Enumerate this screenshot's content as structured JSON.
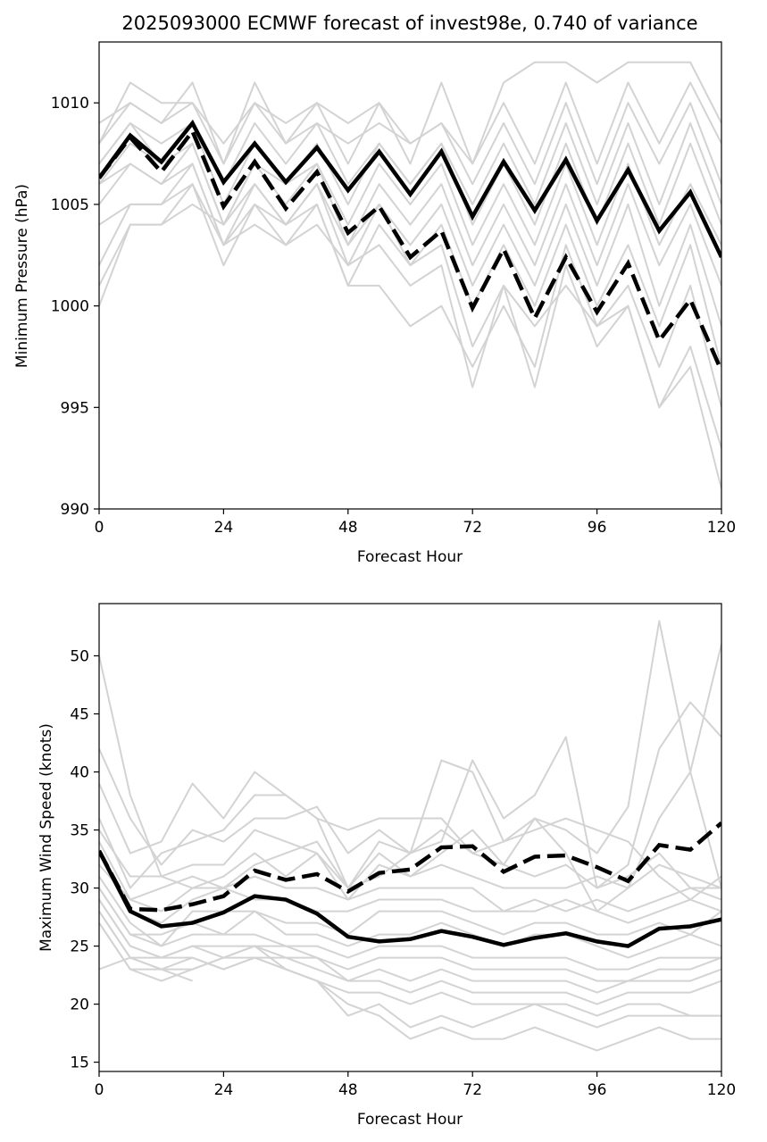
{
  "chart_data": [
    {
      "type": "line",
      "title": "2025093000 ECMWF forecast of invest98e, 0.740 of variance",
      "xlabel": "Forecast Hour",
      "ylabel": "Minimum Pressure (hPa)",
      "xlim": [
        0,
        120
      ],
      "ylim": [
        990,
        1013
      ],
      "xticks": [
        0,
        24,
        48,
        72,
        96,
        120
      ],
      "yticks": [
        990,
        995,
        1000,
        1005,
        1010
      ],
      "x": [
        0,
        6,
        12,
        18,
        24,
        30,
        36,
        42,
        48,
        54,
        60,
        66,
        72,
        78,
        84,
        90,
        96,
        102,
        108,
        114,
        120
      ],
      "series": [
        {
          "name": "solid",
          "style": "solid",
          "values": [
            1006.3,
            1008.4,
            1007.1,
            1009.0,
            1006.1,
            1008.0,
            1006.1,
            1007.8,
            1005.7,
            1007.6,
            1005.5,
            1007.6,
            1004.4,
            1007.1,
            1004.7,
            1007.2,
            1004.2,
            1006.7,
            1003.7,
            1005.6,
            1002.4
          ]
        },
        {
          "name": "dashed",
          "style": "dashed",
          "values": [
            1006.3,
            1008.3,
            1006.6,
            1008.6,
            1004.9,
            1007.1,
            1004.8,
            1006.6,
            1003.6,
            1004.9,
            1002.4,
            1003.7,
            999.9,
            1002.8,
            999.4,
            1002.4,
            999.7,
            1002.1,
            998.3,
            1000.3,
            996.8
          ]
        }
      ],
      "members": [
        [
          1009,
          1010,
          1009,
          1011,
          1007,
          1011,
          1008,
          1010,
          1007,
          1010,
          1007,
          1011,
          1007,
          1011,
          1012,
          1012,
          1011,
          1012,
          1012,
          1012,
          1009
        ],
        [
          1008,
          1011,
          1010,
          1010,
          1008,
          1010,
          1009,
          1010,
          1009,
          1010,
          1008,
          1009,
          1007,
          1010,
          1007,
          1011,
          1007,
          1011,
          1008,
          1011,
          1008
        ],
        [
          1008,
          1010,
          1009,
          1010,
          1007,
          1010,
          1008,
          1009,
          1008,
          1009,
          1008,
          1009,
          1006,
          1009,
          1006,
          1010,
          1006,
          1010,
          1007,
          1010,
          1006
        ],
        [
          1007,
          1009,
          1008,
          1009,
          1006,
          1009,
          1007,
          1009,
          1006,
          1008,
          1006,
          1008,
          1005,
          1008,
          1005,
          1009,
          1005,
          1009,
          1005,
          1009,
          1005
        ],
        [
          1007,
          1009,
          1007,
          1009,
          1005,
          1008,
          1006,
          1008,
          1005,
          1008,
          1006,
          1008,
          1004,
          1007,
          1004,
          1008,
          1004,
          1008,
          1004,
          1008,
          1004
        ],
        [
          1006,
          1008,
          1007,
          1008,
          1004,
          1007,
          1006,
          1007,
          1004,
          1007,
          1005,
          1007,
          1003,
          1006,
          1003,
          1007,
          1003,
          1007,
          1003,
          1006,
          1003
        ],
        [
          1006,
          1007,
          1006,
          1008,
          1004,
          1007,
          1005,
          1007,
          1003,
          1006,
          1004,
          1006,
          1002,
          1005,
          1002,
          1006,
          1002,
          1006,
          1002,
          1005,
          1001
        ],
        [
          1005,
          1007,
          1006,
          1007,
          1003,
          1006,
          1004,
          1006,
          1002,
          1005,
          1003,
          1005,
          1001,
          1004,
          1001,
          1005,
          1001,
          1005,
          1000,
          1004,
          999
        ],
        [
          1004,
          1005,
          1005,
          1007,
          1003,
          1005,
          1004,
          1005,
          1001,
          1004,
          1002,
          1004,
          1000,
          1003,
          1000,
          1004,
          1000,
          1003,
          999,
          1003,
          997
        ],
        [
          1002,
          1005,
          1005,
          1006,
          1002,
          1005,
          1003,
          1005,
          1001,
          1001,
          999,
          1000,
          997,
          1000,
          997,
          1003,
          999,
          1001,
          997,
          1001,
          995
        ],
        [
          1001,
          1004,
          1004,
          1006,
          1003,
          1004,
          1003,
          1004,
          1002,
          1003,
          1001,
          1002,
          996,
          1001,
          996,
          1002,
          998,
          1000,
          995,
          998,
          993
        ],
        [
          1000,
          1004,
          1004,
          1005,
          1004,
          1006,
          1004,
          1006,
          1003,
          1005,
          1002,
          1003,
          998,
          1001,
          999,
          1001,
          999,
          1000,
          995,
          997,
          991
        ]
      ]
    },
    {
      "type": "line",
      "title": "",
      "xlabel": "Forecast Hour",
      "ylabel": "Maximum Wind Speed (knots)",
      "xlim": [
        0,
        120
      ],
      "ylim": [
        14.2,
        54.5
      ],
      "xticks": [
        0,
        24,
        48,
        72,
        96,
        120
      ],
      "yticks": [
        15,
        20,
        25,
        30,
        35,
        40,
        45,
        50
      ],
      "x": [
        0,
        6,
        12,
        18,
        24,
        30,
        36,
        42,
        48,
        54,
        60,
        66,
        72,
        78,
        84,
        90,
        96,
        102,
        108,
        114,
        120
      ],
      "series": [
        {
          "name": "solid",
          "style": "solid",
          "values": [
            33.2,
            28.0,
            26.7,
            27.0,
            27.9,
            29.3,
            29.0,
            27.8,
            25.8,
            25.4,
            25.6,
            26.3,
            25.8,
            25.1,
            25.7,
            26.1,
            25.4,
            25.0,
            26.5,
            26.7,
            27.3
          ]
        },
        {
          "name": "dashed",
          "style": "dashed",
          "values": [
            33.2,
            28.2,
            28.1,
            28.6,
            29.3,
            31.5,
            30.7,
            31.2,
            29.7,
            31.3,
            31.6,
            33.5,
            33.6,
            31.4,
            32.7,
            32.8,
            31.8,
            30.6,
            33.7,
            33.3,
            35.6
          ]
        }
      ],
      "members": [
        [
          50,
          38,
          31,
          30,
          30,
          32,
          33,
          34,
          30,
          31,
          33,
          41,
          40,
          34,
          36,
          35,
          33,
          37,
          53,
          40,
          51
        ],
        [
          42,
          36,
          32,
          35,
          34,
          36,
          36,
          37,
          33,
          35,
          33,
          34,
          41,
          36,
          38,
          43,
          30,
          32,
          42,
          46,
          43
        ],
        [
          39,
          33,
          34,
          39,
          36,
          40,
          38,
          36,
          30,
          33,
          31,
          33,
          35,
          32,
          36,
          33,
          28,
          30,
          36,
          40,
          30
        ],
        [
          36,
          30,
          33,
          34,
          35,
          38,
          38,
          36,
          35,
          36,
          36,
          36,
          33,
          34,
          35,
          36,
          35,
          34,
          31,
          29,
          31
        ],
        [
          35,
          31,
          31,
          32,
          32,
          35,
          34,
          33,
          30,
          34,
          33,
          35,
          33,
          32,
          31,
          32,
          30,
          31,
          33,
          30,
          30
        ],
        [
          34,
          29,
          28,
          30,
          31,
          33,
          31,
          33,
          29,
          32,
          31,
          32,
          31,
          30,
          30,
          30,
          31,
          30,
          32,
          31,
          30
        ],
        [
          33,
          28,
          27,
          29,
          30,
          31,
          30,
          30,
          29,
          30,
          30,
          30,
          30,
          28,
          29,
          28,
          29,
          28,
          29,
          30,
          29
        ],
        [
          32,
          29,
          30,
          31,
          30,
          29,
          29,
          28,
          28,
          29,
          29,
          29,
          28,
          28,
          28,
          29,
          28,
          27,
          28,
          29,
          28
        ],
        [
          31,
          27,
          25,
          28,
          28,
          28,
          27,
          27,
          26,
          28,
          28,
          28,
          27,
          26,
          27,
          27,
          26,
          26,
          27,
          26,
          28
        ],
        [
          30,
          26,
          26,
          27,
          26,
          28,
          26,
          26,
          25,
          26,
          26,
          27,
          26,
          25,
          26,
          26,
          25,
          24,
          25,
          26,
          25
        ],
        [
          30,
          26,
          25,
          26,
          26,
          26,
          25,
          25,
          24,
          25,
          25,
          25,
          24,
          24,
          24,
          24,
          23,
          23,
          24,
          24,
          24
        ],
        [
          29,
          25,
          24,
          25,
          25,
          25,
          25,
          24,
          23,
          24,
          24,
          24,
          23,
          23,
          23,
          23,
          22,
          22,
          23,
          23,
          24
        ],
        [
          29,
          25,
          24,
          25,
          24,
          25,
          24,
          24,
          22,
          23,
          22,
          23,
          22,
          22,
          22,
          22,
          21,
          22,
          22,
          22,
          23
        ],
        [
          28,
          24,
          24,
          24,
          23,
          24,
          24,
          23,
          22,
          22,
          21,
          22,
          21,
          21,
          21,
          21,
          20,
          21,
          21,
          21,
          22
        ],
        [
          28,
          24,
          23,
          24,
          23,
          24,
          23,
          22,
          21,
          21,
          20,
          21,
          20,
          20,
          20,
          20,
          19,
          20,
          20,
          19,
          19
        ],
        [
          27,
          23,
          22,
          23,
          24,
          25,
          23,
          22,
          19,
          20,
          18,
          19,
          18,
          19,
          20,
          19,
          18,
          19,
          19,
          19,
          19
        ],
        [
          27,
          23,
          23,
          23,
          24,
          24,
          23,
          22,
          20,
          19,
          17,
          18,
          17,
          17,
          18,
          17,
          16,
          17,
          18,
          17,
          17
        ],
        [
          23,
          24,
          23,
          22,
          null,
          null,
          null,
          null,
          null,
          null,
          null,
          null,
          null,
          null,
          null,
          null,
          null,
          null,
          null,
          null,
          null
        ]
      ]
    }
  ]
}
